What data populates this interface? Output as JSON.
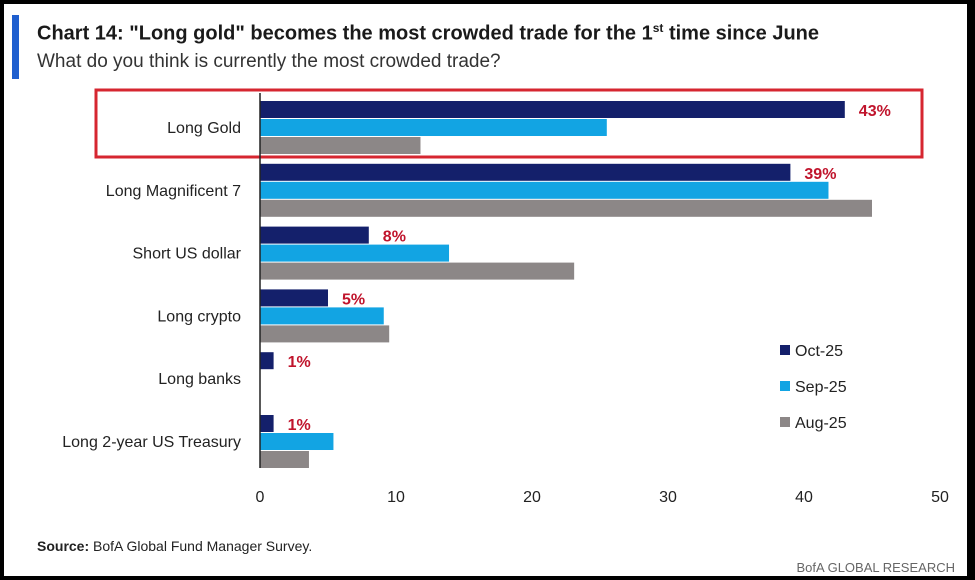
{
  "header": {
    "title_main": "Chart 14: \"Long gold\" becomes the most crowded trade for the 1",
    "title_sup": "st",
    "title_tail": " time since June",
    "subtitle": "What do you think is currently the most crowded trade?"
  },
  "footer": {
    "source_label": "Source:",
    "source_text": " BofA Global Fund Manager Survey.",
    "brand": "BofA GLOBAL RESEARCH"
  },
  "colors": {
    "oct": "#14206b",
    "sep": "#12a4e3",
    "aug": "#8c8787",
    "highlight": "#d62630",
    "label_red": "#c0142c",
    "axis": "#222222"
  },
  "chart_data": {
    "type": "bar",
    "orientation": "horizontal",
    "categories": [
      "Long Gold",
      "Long Magnificent 7",
      "Short US dollar",
      "Long crypto",
      "Long banks",
      "Long 2-year US Treasury"
    ],
    "series": [
      {
        "name": "Oct-25",
        "values": [
          43,
          39,
          8,
          5,
          1,
          1
        ]
      },
      {
        "name": "Sep-25",
        "values": [
          25.5,
          41.8,
          13.9,
          9.1,
          0,
          5.4
        ]
      },
      {
        "name": "Aug-25",
        "values": [
          11.8,
          45,
          23.1,
          9.5,
          0,
          3.6
        ]
      }
    ],
    "data_labels": [
      "43%",
      "39%",
      "8%",
      "5%",
      "1%",
      "1%"
    ],
    "xlim": [
      0,
      50
    ],
    "xticks": [
      "0",
      "10",
      "20",
      "30",
      "40",
      "50"
    ],
    "legend_position": "right",
    "highlighted_category": "Long Gold",
    "grid": false
  }
}
